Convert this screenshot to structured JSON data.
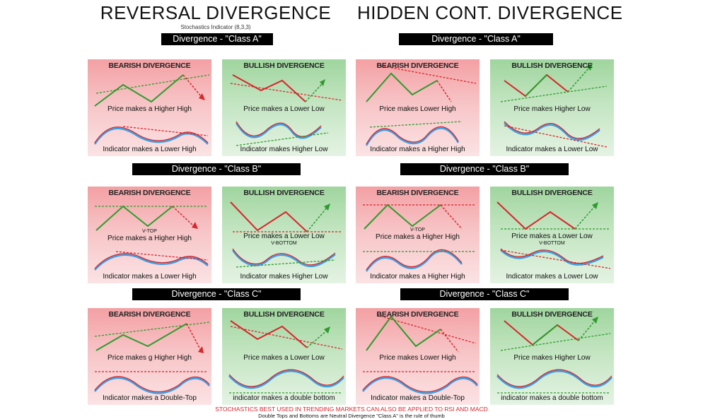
{
  "left_heading": "REVERSAL DIVERGENCE",
  "left_subheading": "Stochastics Indicator (8,3,3)",
  "right_heading": "HIDDEN CONT. DIVERGENCE",
  "bars": {
    "left_a": "Divergence - \"Class A\"",
    "right_a": "Divergence - \"Class A\"",
    "left_b": "Divergence - \"Class B\"",
    "right_b": "Divergence - \"Class B\"",
    "left_c": "Divergence - \"Class C\"",
    "right_c": "Divergence - \"Class C\""
  },
  "panels": {
    "p1": {
      "title": "BEARISH DIVERGENCE",
      "price": "Price makes a Higher High",
      "indicator": "Indicator makes a Lower High",
      "tag": ""
    },
    "p2": {
      "title": "BULLISH DIVERGENCE",
      "price": "Price makes a Lower Low",
      "indicator": "Indicator makes Higher Low",
      "tag": ""
    },
    "p3": {
      "title": "BEARISH DIVERGENCE",
      "price": "Price makes Lower High",
      "indicator": "Indicator makes a Higher High",
      "tag": ""
    },
    "p4": {
      "title": "BULLISH DIVERGENCE",
      "price": "Price makes Higher Low",
      "indicator": "Indicator makes a Lower Low",
      "tag": ""
    },
    "p5": {
      "title": "BEARISH DIVERGENCE",
      "price": "Price makes a Higher High",
      "indicator": "Indicator makes a Lower High",
      "tag": "V-TOP"
    },
    "p6": {
      "title": "BULLISH DIVERGENCE",
      "price": "Price makes a Lower Low",
      "indicator": "Indicator makes Higher Low",
      "tag": "V-BOTTOM"
    },
    "p7": {
      "title": "BEARISH DIVERGENCE",
      "price": "Price makes a Higher High",
      "indicator": "Indicator makes a Higher High",
      "tag": "V-TOP"
    },
    "p8": {
      "title": "BULLISH DIVERGENCE",
      "price": "Price makes a Lower Low",
      "indicator": "Indicator makes a Lower Low",
      "tag": "V-BOTTOM"
    },
    "p9": {
      "title": "BEARISH DIVERGENCE",
      "price": "Price makes g Higher High",
      "indicator": "Indicator makes a Double-Top",
      "tag": ""
    },
    "p10": {
      "title": "BULLISH DIVERGENCE",
      "price": "Price makes a Lower Low",
      "indicator": "indicator makes a double bottom",
      "tag": ""
    },
    "p11": {
      "title": "BEARISH DIVERGENCE",
      "price": "Price makes Lower High",
      "indicator": "Indicator makes a Double-Top",
      "tag": ""
    },
    "p12": {
      "title": "BULLISH DIVERGENCE",
      "price": "Price makes Higher Low",
      "indicator": "indicator makes a double bottom",
      "tag": ""
    }
  },
  "footer_line1": "STOCHASTICS BEST USED IN TRENDING MARKETS CAN ALSO BE APPLIED TO RSI AND MACD",
  "footer_line2": "Double Tops and Bottoms are Neutral Divergence   \"Class A\" is the rule of thumb",
  "colors": {
    "bearish_bg": "#f3a0a3",
    "bullish_bg": "#9fd59e",
    "price_up": "#2e9b2e",
    "price_down": "#d7262c",
    "indicator_blue": "#3aa0e6"
  }
}
